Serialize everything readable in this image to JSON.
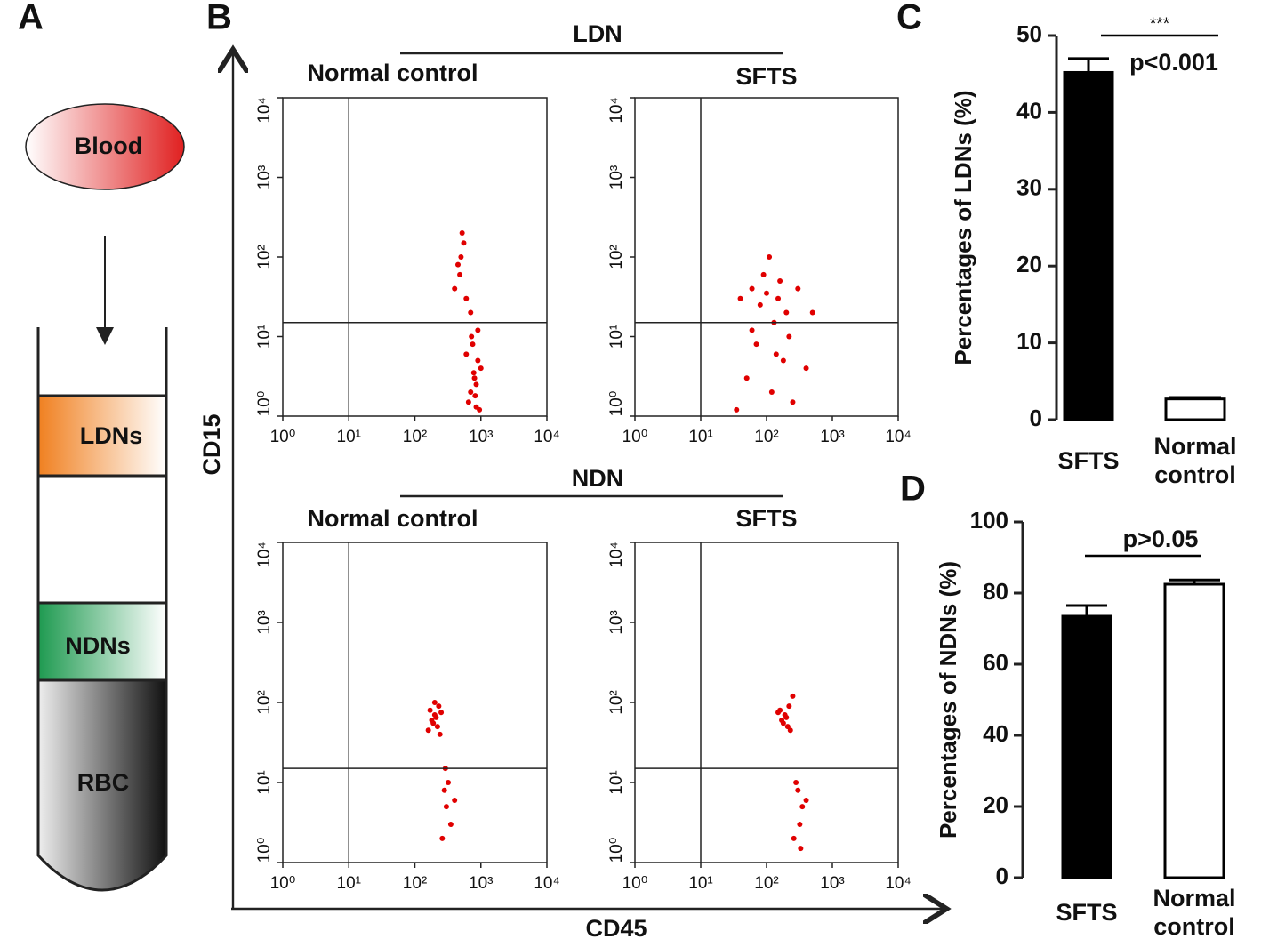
{
  "panel_labels": [
    "A",
    "B",
    "C",
    "D"
  ],
  "diagram": {
    "blood": "Blood",
    "layers": [
      "LDNs",
      "NDNs",
      "RBC"
    ]
  },
  "groups": [
    "LDN",
    "NDN"
  ],
  "axes": {
    "y": "CD15",
    "x": "CD45"
  },
  "chart_data": [
    {
      "type": "scatter",
      "title": "Normal control",
      "log": true,
      "color": "#e00000",
      "xlim": [
        1,
        10000
      ],
      "ylim": [
        1,
        10000
      ],
      "xticks": [
        {
          "value": 1,
          "label": "10⁰"
        },
        {
          "value": 10,
          "label": "10¹"
        },
        {
          "value": 100,
          "label": "10²"
        },
        {
          "value": 1000,
          "label": "10³"
        },
        {
          "value": 10000,
          "label": "10⁴"
        }
      ],
      "yticks": [
        {
          "value": 1,
          "label": "10⁰"
        },
        {
          "value": 10,
          "label": "10¹"
        },
        {
          "value": 100,
          "label": "10²"
        },
        {
          "value": 1000,
          "label": "10³"
        },
        {
          "value": 10000,
          "label": "10⁴"
        }
      ],
      "gates": {
        "x": 10,
        "y": 15
      },
      "x": [
        700,
        800,
        900,
        650,
        1000,
        750,
        850,
        600,
        950,
        780,
        820,
        500,
        550,
        450,
        520,
        480,
        600,
        700,
        400,
        900,
        850,
        720
      ],
      "y": [
        2,
        3,
        5,
        1.5,
        4,
        8,
        2.5,
        6,
        1.2,
        3.5,
        1.8,
        100,
        150,
        80,
        200,
        60,
        30,
        20,
        40,
        12,
        1.3,
        10
      ]
    },
    {
      "type": "scatter",
      "title": "SFTS",
      "log": true,
      "color": "#e00000",
      "xlim": [
        1,
        10000
      ],
      "ylim": [
        1,
        10000
      ],
      "xticks": [
        {
          "value": 1,
          "label": "10⁰"
        },
        {
          "value": 10,
          "label": "10¹"
        },
        {
          "value": 100,
          "label": "10²"
        },
        {
          "value": 1000,
          "label": "10³"
        },
        {
          "value": 10000,
          "label": "10⁴"
        }
      ],
      "yticks": [
        {
          "value": 1,
          "label": "10⁰"
        },
        {
          "value": 10,
          "label": "10¹"
        },
        {
          "value": 100,
          "label": "10²"
        },
        {
          "value": 1000,
          "label": "10³"
        },
        {
          "value": 10000,
          "label": "10⁴"
        }
      ],
      "gates": {
        "x": 10,
        "y": 15
      },
      "x": [
        40,
        60,
        80,
        100,
        150,
        200,
        300,
        50,
        70,
        120,
        180,
        250,
        400,
        90,
        130,
        160,
        220,
        35,
        500,
        110,
        140,
        60
      ],
      "y": [
        30,
        40,
        25,
        35,
        30,
        20,
        40,
        3,
        8,
        2,
        5,
        1.5,
        4,
        60,
        15,
        50,
        10,
        1.2,
        20,
        100,
        6,
        12
      ]
    },
    {
      "type": "scatter",
      "title": "Normal control",
      "log": true,
      "color": "#e00000",
      "xlim": [
        1,
        10000
      ],
      "ylim": [
        1,
        10000
      ],
      "xticks": [
        {
          "value": 1,
          "label": "10⁰"
        },
        {
          "value": 10,
          "label": "10¹"
        },
        {
          "value": 100,
          "label": "10²"
        },
        {
          "value": 1000,
          "label": "10³"
        },
        {
          "value": 10000,
          "label": "10⁴"
        }
      ],
      "yticks": [
        {
          "value": 1,
          "label": "10⁰"
        },
        {
          "value": 10,
          "label": "10¹"
        },
        {
          "value": 100,
          "label": "10²"
        },
        {
          "value": 1000,
          "label": "10³"
        },
        {
          "value": 10000,
          "label": "10⁴"
        }
      ],
      "gates": {
        "x": 10,
        "y": 15
      },
      "x": [
        180,
        200,
        220,
        170,
        210,
        190,
        230,
        160,
        250,
        200,
        240,
        280,
        300,
        350,
        320,
        260,
        400,
        290
      ],
      "y": [
        60,
        70,
        50,
        80,
        65,
        55,
        90,
        45,
        75,
        100,
        40,
        8,
        5,
        3,
        10,
        2,
        6,
        15
      ]
    },
    {
      "type": "scatter",
      "title": "SFTS",
      "log": true,
      "color": "#e00000",
      "xlim": [
        1,
        10000
      ],
      "ylim": [
        1,
        10000
      ],
      "xticks": [
        {
          "value": 1,
          "label": "10⁰"
        },
        {
          "value": 10,
          "label": "10¹"
        },
        {
          "value": 100,
          "label": "10²"
        },
        {
          "value": 1000,
          "label": "10³"
        },
        {
          "value": 10000,
          "label": "10⁴"
        }
      ],
      "yticks": [
        {
          "value": 1,
          "label": "10⁰"
        },
        {
          "value": 10,
          "label": "10¹"
        },
        {
          "value": 100,
          "label": "10²"
        },
        {
          "value": 1000,
          "label": "10³"
        },
        {
          "value": 10000,
          "label": "10⁴"
        }
      ],
      "gates": {
        "x": 10,
        "y": 15
      },
      "x": [
        170,
        190,
        210,
        160,
        200,
        180,
        220,
        230,
        150,
        250,
        300,
        350,
        320,
        280,
        260,
        400,
        330
      ],
      "y": [
        60,
        70,
        50,
        80,
        65,
        55,
        90,
        45,
        75,
        120,
        8,
        5,
        3,
        10,
        2,
        6,
        1.5
      ]
    },
    {
      "type": "bar",
      "ylabel": "Percentages of LDNs (%)",
      "categories": [
        "SFTS",
        "Normal control"
      ],
      "values": [
        45.2,
        2.7
      ],
      "errors": [
        1.8,
        0.2
      ],
      "colors": [
        "#000000",
        "#ffffff"
      ],
      "ylim": [
        0,
        50
      ],
      "yticks": [
        0,
        10,
        20,
        30,
        40,
        50
      ],
      "significance": "***",
      "annotation": "p<0.001"
    },
    {
      "type": "bar",
      "ylabel": "Percentages of NDNs (%)",
      "categories": [
        "SFTS",
        "Normal control"
      ],
      "values": [
        73.5,
        82.5
      ],
      "errors": [
        3,
        1.2
      ],
      "colors": [
        "#000000",
        "#ffffff"
      ],
      "ylim": [
        0,
        100
      ],
      "yticks": [
        0,
        20,
        40,
        60,
        80,
        100
      ],
      "annotation": "p>0.05"
    }
  ]
}
